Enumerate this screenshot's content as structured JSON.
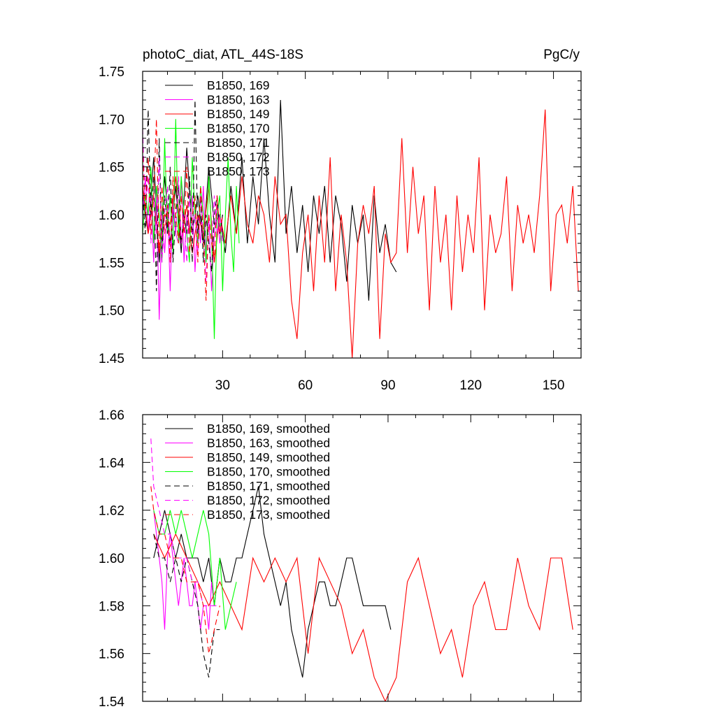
{
  "chart_data": [
    {
      "type": "line",
      "title": "photoC_diat, ATL_44S-18S",
      "units": "PgC/y",
      "xlim": [
        1,
        160
      ],
      "ylim": [
        1.45,
        1.75
      ],
      "xticks": [
        30,
        60,
        90,
        120,
        150
      ],
      "yticks": [
        1.45,
        1.5,
        1.55,
        1.6,
        1.65,
        1.7,
        1.75
      ],
      "ytick_labels": [
        "1.45",
        "1.50",
        "1.55",
        "1.60",
        "1.65",
        "1.70",
        "1.75"
      ],
      "legend_position": "top-left",
      "series": [
        {
          "name": "B1850, 169",
          "color": "#000000",
          "dash": "solid",
          "x": [
            1,
            3,
            5,
            7,
            9,
            11,
            13,
            15,
            17,
            19,
            21,
            23,
            25,
            27,
            29,
            31,
            33,
            35,
            37,
            39,
            41,
            43,
            45,
            47,
            49,
            51,
            53,
            55,
            57,
            59,
            61,
            63,
            65,
            67,
            69,
            71,
            73,
            75,
            77,
            79,
            81,
            83,
            85,
            87,
            89,
            91,
            93
          ],
          "y": [
            1.62,
            1.58,
            1.66,
            1.55,
            1.64,
            1.57,
            1.63,
            1.56,
            1.67,
            1.58,
            1.62,
            1.57,
            1.65,
            1.59,
            1.6,
            1.56,
            1.63,
            1.58,
            1.66,
            1.57,
            1.64,
            1.59,
            1.68,
            1.6,
            1.55,
            1.72,
            1.58,
            1.63,
            1.56,
            1.61,
            1.54,
            1.62,
            1.58,
            1.63,
            1.55,
            1.62,
            1.59,
            1.53,
            1.61,
            1.57,
            1.6,
            1.51,
            1.62,
            1.56,
            1.59,
            1.55,
            1.54
          ]
        },
        {
          "name": "B1850, 163",
          "color": "#ff00ff",
          "dash": "solid",
          "x": [
            1,
            2,
            3,
            4,
            5,
            6,
            7,
            8,
            9,
            10,
            11,
            12,
            13,
            14,
            15,
            16,
            17,
            18,
            19,
            20,
            21,
            22,
            23,
            24,
            25,
            26,
            27,
            28,
            29,
            30
          ],
          "y": [
            1.6,
            1.64,
            1.58,
            1.62,
            1.55,
            1.63,
            1.49,
            1.6,
            1.56,
            1.61,
            1.52,
            1.62,
            1.58,
            1.57,
            1.64,
            1.55,
            1.6,
            1.58,
            1.62,
            1.54,
            1.6,
            1.57,
            1.63,
            1.56,
            1.6,
            1.52,
            1.58,
            1.61,
            1.57,
            1.6
          ]
        },
        {
          "name": "B1850, 149",
          "color": "#ff0000",
          "dash": "solid",
          "x": [
            1,
            3,
            5,
            7,
            9,
            11,
            13,
            15,
            17,
            19,
            21,
            23,
            25,
            27,
            29,
            31,
            33,
            35,
            37,
            39,
            41,
            43,
            45,
            47,
            49,
            51,
            53,
            55,
            57,
            59,
            61,
            63,
            65,
            67,
            69,
            71,
            73,
            75,
            77,
            79,
            81,
            83,
            85,
            87,
            89,
            91,
            93,
            95,
            97,
            99,
            101,
            103,
            105,
            107,
            109,
            111,
            113,
            115,
            117,
            119,
            121,
            123,
            125,
            127,
            129,
            131,
            133,
            135,
            137,
            139,
            141,
            143,
            145,
            147,
            149,
            151,
            153,
            155,
            157,
            159
          ],
          "y": [
            1.63,
            1.58,
            1.62,
            1.56,
            1.6,
            1.59,
            1.64,
            1.57,
            1.61,
            1.56,
            1.6,
            1.58,
            1.63,
            1.55,
            1.6,
            1.57,
            1.62,
            1.58,
            1.64,
            1.59,
            1.57,
            1.62,
            1.6,
            1.55,
            1.64,
            1.59,
            1.6,
            1.51,
            1.47,
            1.56,
            1.6,
            1.52,
            1.62,
            1.55,
            1.66,
            1.52,
            1.6,
            1.55,
            1.45,
            1.57,
            1.61,
            1.58,
            1.63,
            1.47,
            1.58,
            1.55,
            1.56,
            1.68,
            1.56,
            1.65,
            1.58,
            1.62,
            1.5,
            1.63,
            1.55,
            1.6,
            1.5,
            1.62,
            1.54,
            1.6,
            1.56,
            1.66,
            1.5,
            1.6,
            1.56,
            1.58,
            1.64,
            1.52,
            1.61,
            1.57,
            1.6,
            1.56,
            1.62,
            1.71,
            1.52,
            1.6,
            1.61,
            1.57,
            1.63,
            1.52
          ]
        },
        {
          "name": "B1850, 170",
          "color": "#00ff00",
          "dash": "solid",
          "x": [
            1,
            2,
            3,
            4,
            5,
            6,
            7,
            8,
            9,
            10,
            11,
            12,
            13,
            14,
            15,
            16,
            17,
            18,
            19,
            20,
            21,
            22,
            23,
            24,
            25,
            26,
            27,
            28,
            29,
            30,
            31,
            32,
            33,
            34,
            35,
            36
          ],
          "y": [
            1.58,
            1.62,
            1.6,
            1.65,
            1.57,
            1.63,
            1.6,
            1.55,
            1.68,
            1.58,
            1.62,
            1.56,
            1.7,
            1.57,
            1.64,
            1.6,
            1.58,
            1.55,
            1.66,
            1.6,
            1.57,
            1.63,
            1.6,
            1.55,
            1.64,
            1.58,
            1.47,
            1.6,
            1.62,
            1.52,
            1.6,
            1.66,
            1.58,
            1.54,
            1.63,
            1.57
          ]
        },
        {
          "name": "B1850, 171",
          "color": "#000000",
          "dash": "dashed",
          "x": [
            1,
            2,
            3,
            4,
            5,
            6,
            7,
            8,
            9,
            10,
            11,
            12,
            13,
            14,
            15,
            16,
            17,
            18,
            19,
            20,
            21,
            22,
            23,
            24,
            25,
            26,
            27,
            28,
            29,
            30
          ],
          "y": [
            1.62,
            1.58,
            1.71,
            1.6,
            1.64,
            1.52,
            1.68,
            1.56,
            1.62,
            1.58,
            1.65,
            1.55,
            1.6,
            1.63,
            1.57,
            1.6,
            1.58,
            1.64,
            1.55,
            1.72,
            1.58,
            1.62,
            1.55,
            1.6,
            1.57,
            1.54,
            1.6,
            1.62,
            1.58,
            1.6
          ]
        },
        {
          "name": "B1850, 172",
          "color": "#ff00ff",
          "dash": "dashed",
          "x": [
            1,
            2,
            3,
            4,
            5,
            6,
            7,
            8,
            9,
            10,
            11,
            12,
            13,
            14,
            15,
            16,
            17,
            18,
            19,
            20,
            21,
            22,
            23,
            24,
            25,
            26,
            27,
            28,
            29,
            30
          ],
          "y": [
            1.69,
            1.6,
            1.64,
            1.57,
            1.62,
            1.58,
            1.66,
            1.55,
            1.6,
            1.63,
            1.56,
            1.61,
            1.58,
            1.64,
            1.57,
            1.6,
            1.55,
            1.62,
            1.58,
            1.6,
            1.56,
            1.62,
            1.58,
            1.53,
            1.6,
            1.57,
            1.62,
            1.58,
            1.6,
            1.57
          ]
        },
        {
          "name": "B1850, 173",
          "color": "#ff0000",
          "dash": "dashed",
          "x": [
            1,
            2,
            3,
            4,
            5,
            6,
            7,
            8,
            9,
            10,
            11,
            12,
            13,
            14,
            15,
            16,
            17,
            18,
            19,
            20,
            21,
            22,
            23,
            24,
            25,
            26,
            27,
            28,
            29,
            30
          ],
          "y": [
            1.67,
            1.6,
            1.66,
            1.58,
            1.62,
            1.7,
            1.56,
            1.63,
            1.58,
            1.61,
            1.55,
            1.64,
            1.6,
            1.57,
            1.62,
            1.58,
            1.65,
            1.56,
            1.6,
            1.62,
            1.55,
            1.63,
            1.58,
            1.51,
            1.6,
            1.57,
            1.55,
            1.62,
            1.58,
            1.6
          ]
        }
      ]
    },
    {
      "type": "line",
      "xlim": [
        1,
        160
      ],
      "ylim": [
        1.54,
        1.66
      ],
      "xticks": [
        30,
        60,
        90,
        120,
        150
      ],
      "yticks": [
        1.54,
        1.56,
        1.58,
        1.6,
        1.62,
        1.64,
        1.66
      ],
      "ytick_labels": [
        "1.54",
        "1.56",
        "1.58",
        "1.60",
        "1.62",
        "1.64",
        "1.66"
      ],
      "legend_position": "top-left",
      "series": [
        {
          "name": "B1850, 169, smoothed",
          "color": "#000000",
          "dash": "solid",
          "x": [
            5,
            7,
            9,
            11,
            13,
            15,
            17,
            19,
            21,
            23,
            25,
            27,
            29,
            31,
            33,
            35,
            37,
            39,
            41,
            43,
            45,
            47,
            49,
            51,
            53,
            55,
            57,
            59,
            61,
            63,
            65,
            67,
            69,
            71,
            73,
            75,
            77,
            79,
            81,
            83,
            85,
            87,
            89,
            91
          ],
          "y": [
            1.6,
            1.61,
            1.62,
            1.61,
            1.6,
            1.61,
            1.6,
            1.6,
            1.6,
            1.59,
            1.6,
            1.58,
            1.6,
            1.59,
            1.59,
            1.6,
            1.6,
            1.61,
            1.62,
            1.63,
            1.61,
            1.6,
            1.59,
            1.58,
            1.59,
            1.57,
            1.56,
            1.55,
            1.57,
            1.58,
            1.59,
            1.59,
            1.58,
            1.58,
            1.59,
            1.6,
            1.6,
            1.59,
            1.58,
            1.58,
            1.58,
            1.58,
            1.58,
            1.57
          ]
        },
        {
          "name": "B1850, 163, smoothed",
          "color": "#ff00ff",
          "dash": "solid",
          "x": [
            5,
            6,
            7,
            8,
            9,
            10,
            11,
            12,
            13,
            14,
            15,
            16,
            17,
            18,
            19,
            20,
            21,
            22,
            23,
            24,
            25,
            26,
            27
          ],
          "y": [
            1.62,
            1.61,
            1.6,
            1.59,
            1.57,
            1.6,
            1.61,
            1.6,
            1.59,
            1.58,
            1.59,
            1.6,
            1.59,
            1.58,
            1.58,
            1.59,
            1.58,
            1.57,
            1.58,
            1.58,
            1.57,
            1.59,
            1.58
          ]
        },
        {
          "name": "B1850, 149, smoothed",
          "color": "#ff0000",
          "dash": "solid",
          "x": [
            5,
            9,
            13,
            17,
            21,
            25,
            29,
            33,
            37,
            41,
            45,
            49,
            53,
            57,
            61,
            65,
            69,
            73,
            77,
            81,
            85,
            89,
            93,
            97,
            101,
            105,
            109,
            113,
            117,
            121,
            125,
            129,
            133,
            137,
            141,
            145,
            149,
            153,
            157
          ],
          "y": [
            1.61,
            1.6,
            1.61,
            1.6,
            1.59,
            1.58,
            1.59,
            1.58,
            1.57,
            1.6,
            1.59,
            1.6,
            1.59,
            1.6,
            1.56,
            1.6,
            1.59,
            1.58,
            1.56,
            1.57,
            1.55,
            1.54,
            1.55,
            1.59,
            1.6,
            1.58,
            1.56,
            1.57,
            1.55,
            1.58,
            1.59,
            1.57,
            1.57,
            1.6,
            1.58,
            1.57,
            1.6,
            1.6,
            1.57
          ]
        },
        {
          "name": "B1850, 170, smoothed",
          "color": "#00ff00",
          "dash": "solid",
          "x": [
            5,
            7,
            9,
            11,
            13,
            15,
            17,
            19,
            21,
            23,
            25,
            27,
            29,
            31,
            33,
            35
          ],
          "y": [
            1.62,
            1.61,
            1.61,
            1.62,
            1.61,
            1.62,
            1.61,
            1.6,
            1.61,
            1.62,
            1.61,
            1.58,
            1.6,
            1.57,
            1.58,
            1.59
          ]
        },
        {
          "name": "B1850, 171, smoothed",
          "color": "#000000",
          "dash": "dashed",
          "x": [
            5,
            7,
            9,
            11,
            13,
            15,
            17,
            19,
            21,
            23,
            25,
            27,
            29
          ],
          "y": [
            1.61,
            1.6,
            1.6,
            1.59,
            1.6,
            1.59,
            1.6,
            1.59,
            1.58,
            1.56,
            1.55,
            1.57,
            1.57
          ]
        },
        {
          "name": "B1850, 172, smoothed",
          "color": "#ff00ff",
          "dash": "dashed",
          "x": [
            4,
            5,
            7,
            9,
            11,
            13,
            15,
            17,
            19,
            21,
            23,
            25,
            27,
            29
          ],
          "y": [
            1.65,
            1.63,
            1.62,
            1.61,
            1.61,
            1.6,
            1.6,
            1.6,
            1.59,
            1.59,
            1.58,
            1.58,
            1.58,
            1.58
          ]
        },
        {
          "name": "B1850, 173, smoothed",
          "color": "#ff0000",
          "dash": "dashed",
          "x": [
            4,
            5,
            7,
            9,
            11,
            13,
            15,
            17,
            19,
            21,
            23,
            25,
            27,
            29
          ],
          "y": [
            1.63,
            1.62,
            1.61,
            1.61,
            1.6,
            1.6,
            1.6,
            1.59,
            1.59,
            1.59,
            1.58,
            1.56,
            1.57,
            1.58
          ]
        }
      ]
    }
  ]
}
